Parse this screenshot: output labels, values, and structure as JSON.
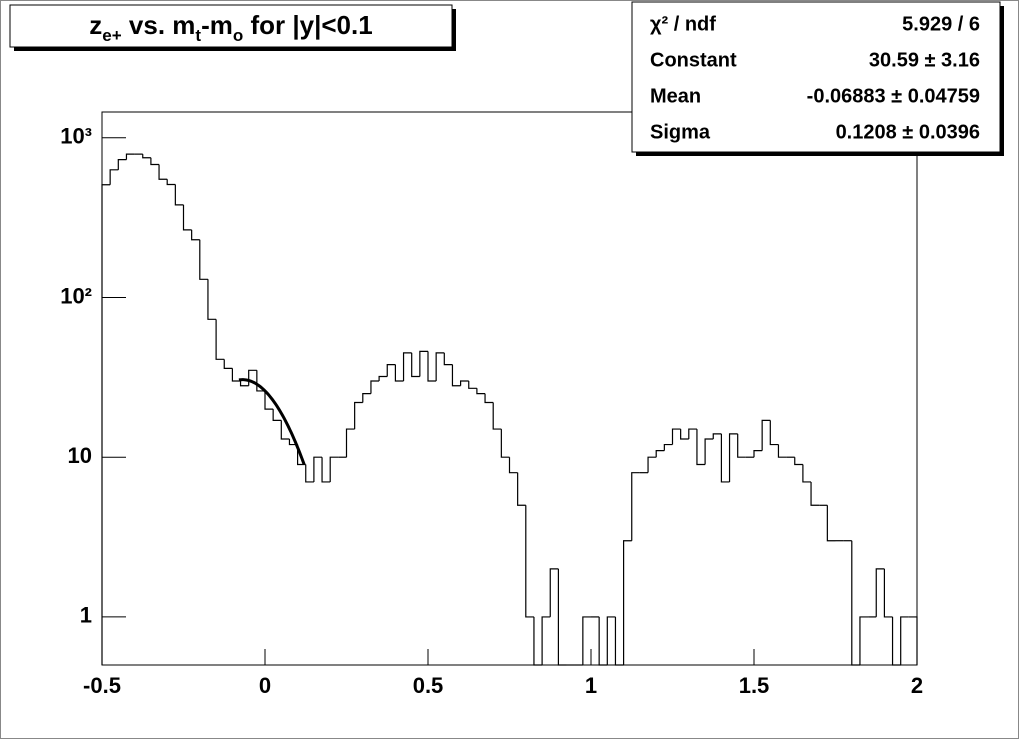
{
  "chart_data": {
    "type": "histogram",
    "title": [
      {
        "text": "z"
      },
      {
        "text": "e+",
        "sub": true
      },
      {
        "text": " vs. m"
      },
      {
        "text": "t",
        "sub": true
      },
      {
        "text": "-m"
      },
      {
        "text": "o",
        "sub": true
      },
      {
        "text": " for |y|<0.1"
      }
    ],
    "bins": [
      -0.5,
      -0.475,
      -0.45,
      -0.425,
      -0.4,
      -0.375,
      -0.35,
      -0.325,
      -0.3,
      -0.275,
      -0.25,
      -0.225,
      -0.2,
      -0.175,
      -0.15,
      -0.125,
      -0.1,
      -0.075,
      -0.05,
      -0.025,
      0,
      0.025,
      0.05,
      0.075,
      0.1,
      0.125,
      0.15,
      0.175,
      0.2,
      0.225,
      0.25,
      0.275,
      0.3,
      0.325,
      0.35,
      0.375,
      0.4,
      0.425,
      0.45,
      0.475,
      0.5,
      0.525,
      0.55,
      0.575,
      0.6,
      0.625,
      0.65,
      0.675,
      0.7,
      0.725,
      0.75,
      0.775,
      0.8,
      0.825,
      0.85,
      0.875,
      0.9,
      0.925,
      0.95,
      0.975,
      1,
      1.025,
      1.05,
      1.075,
      1.1,
      1.125,
      1.15,
      1.175,
      1.2,
      1.225,
      1.25,
      1.275,
      1.3,
      1.325,
      1.35,
      1.375,
      1.4,
      1.425,
      1.45,
      1.475,
      1.5,
      1.525,
      1.55,
      1.575,
      1.6,
      1.625,
      1.65,
      1.675,
      1.7,
      1.725,
      1.75,
      1.775,
      1.8,
      1.825,
      1.85,
      1.875,
      1.9,
      1.925,
      1.95,
      1.975,
      2
    ],
    "values": [
      508,
      630,
      730,
      790,
      790,
      750,
      680,
      550,
      510,
      380,
      265,
      230,
      130,
      73,
      41,
      36,
      30,
      28,
      35,
      26,
      20,
      17,
      13,
      12,
      9,
      7,
      10,
      7,
      10,
      10,
      15,
      22,
      25,
      30,
      32,
      38,
      30,
      45,
      32,
      46,
      30,
      45,
      38,
      28,
      30,
      27,
      25,
      22,
      15,
      10,
      8,
      5,
      1,
      0,
      1,
      2,
      0,
      0,
      0,
      1,
      1,
      0,
      1,
      0,
      3,
      8,
      8,
      10,
      11,
      12,
      15,
      13,
      15,
      9,
      13,
      14,
      7,
      14,
      10,
      10,
      11,
      17,
      12,
      10,
      10,
      9,
      7,
      5,
      5,
      3,
      3,
      3,
      0,
      1,
      1,
      2,
      1,
      0,
      1,
      1
    ],
    "color": "#000000",
    "xlim": [
      -0.5,
      2
    ],
    "xticks": [
      -0.5,
      0,
      0.5,
      1,
      1.5,
      2
    ],
    "ylim": [
      0.5,
      1450
    ],
    "yticks": [
      1,
      10,
      {
        "value": 100,
        "label": "10²"
      },
      {
        "value": 1000,
        "label": "10³"
      }
    ],
    "log_y": true,
    "fit": {
      "constant": 30.59,
      "mean": -0.06883,
      "sigma": 0.1208,
      "range": [
        -0.08,
        0.12
      ]
    },
    "stats": [
      {
        "label": "χ² / ndf",
        "value": "5.929 / 6"
      },
      {
        "label": "Constant",
        "value": "30.59 ± 3.16"
      },
      {
        "label": "Mean",
        "value": "-0.06883 ± 0.04759"
      },
      {
        "label": "Sigma",
        "value": "0.1208 ± 0.0396"
      }
    ]
  }
}
